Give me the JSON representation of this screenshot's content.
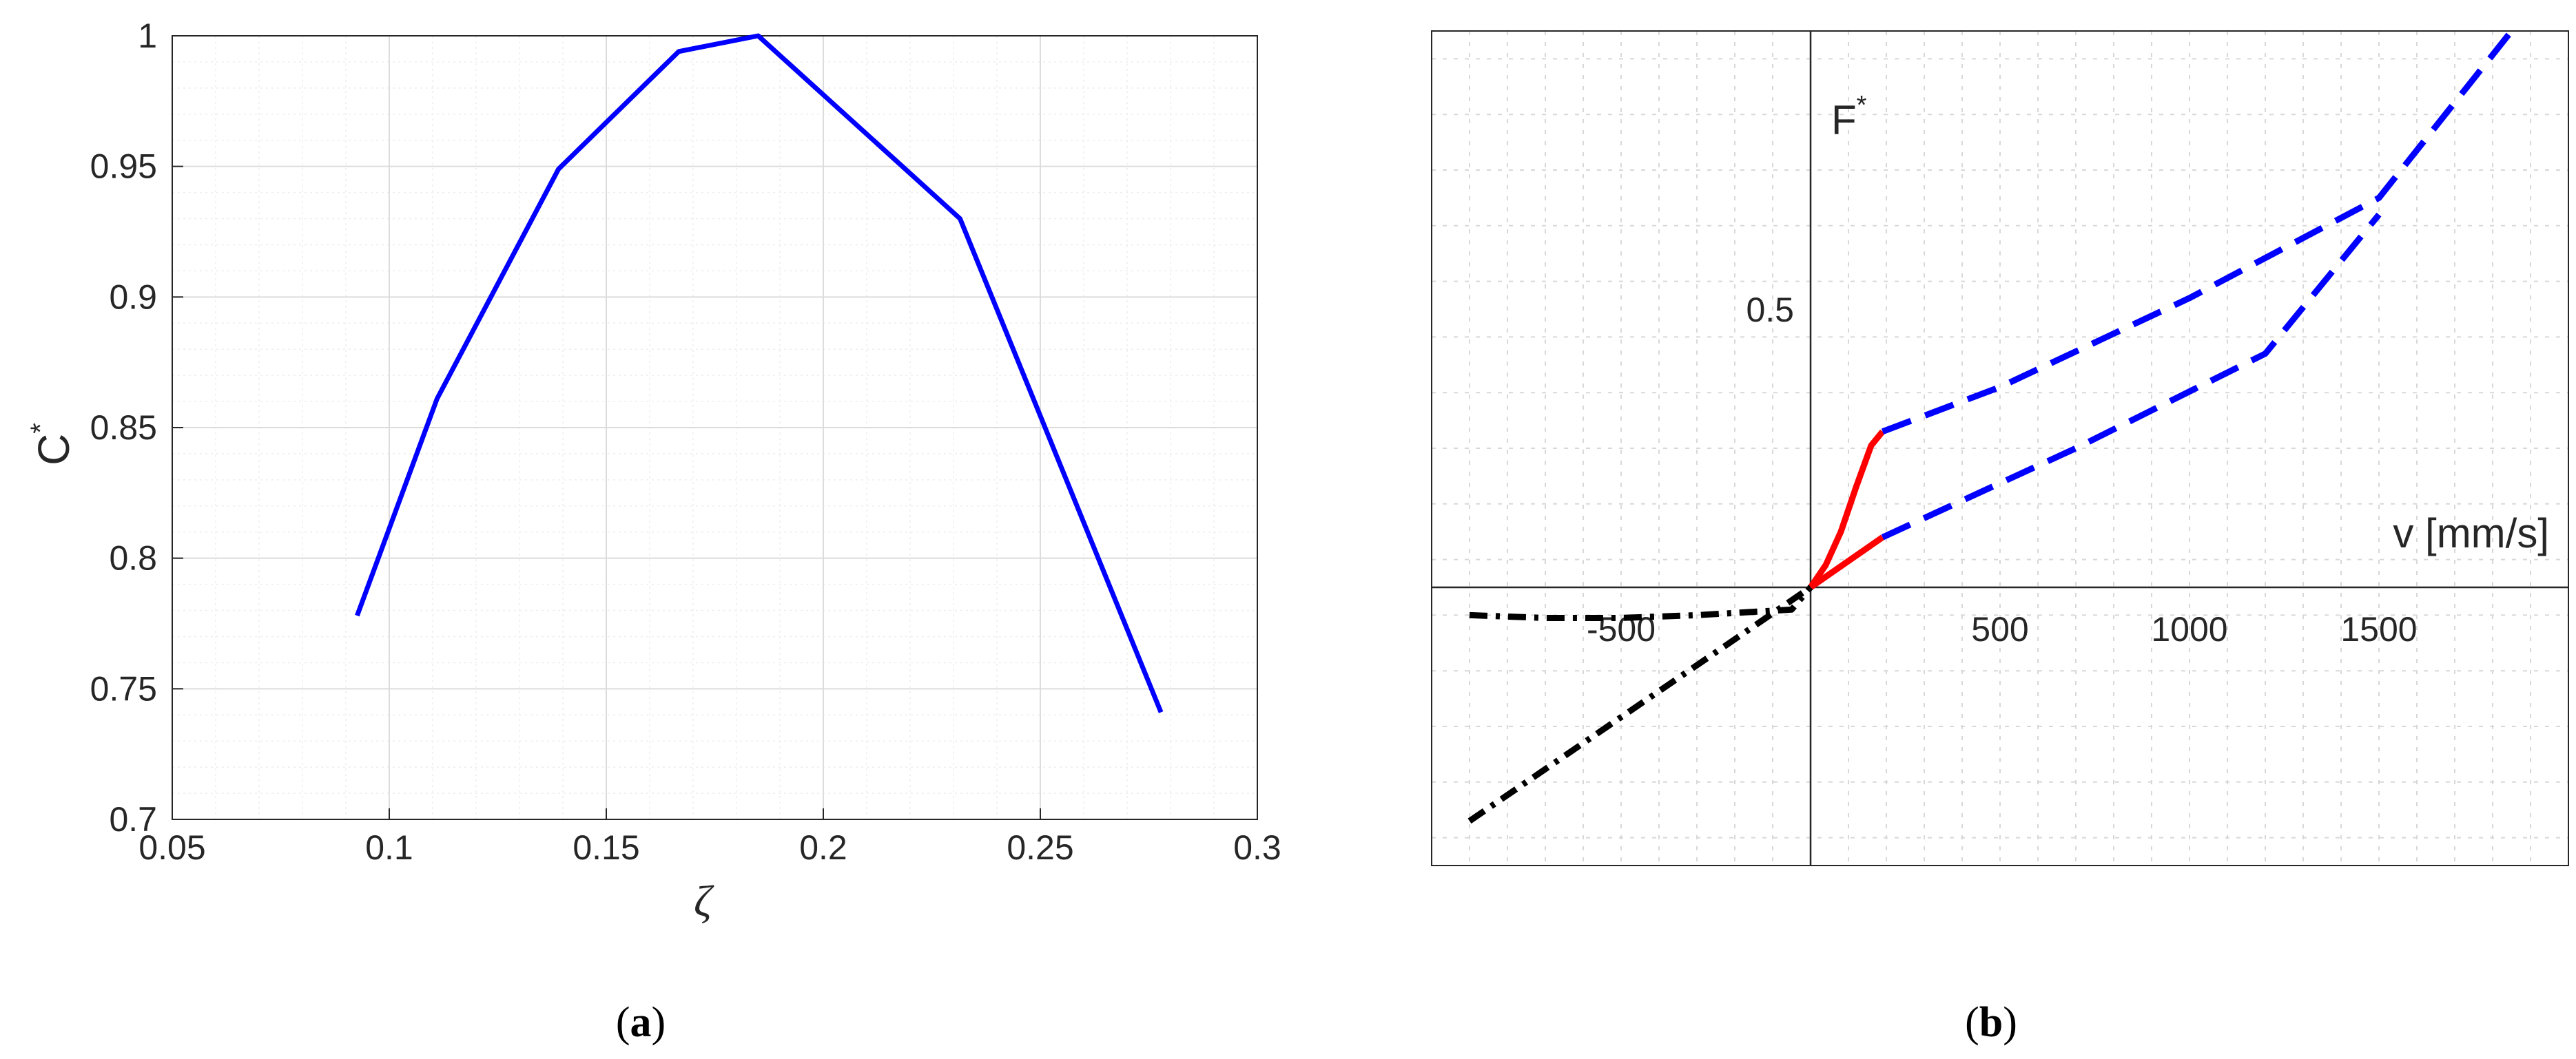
{
  "chart_data": [
    {
      "type": "line",
      "caption": {
        "open": "(",
        "letter": "a",
        "close": ")"
      },
      "xlabel": "ζ",
      "ylabel": "C",
      "ylabel_superscript": "*",
      "xlim": [
        0.05,
        0.3
      ],
      "ylim": [
        0.7,
        1.0
      ],
      "xticks": [
        0.05,
        0.1,
        0.15,
        0.2,
        0.25,
        0.3
      ],
      "xtick_labels": [
        "0.05",
        "0.1",
        "0.15",
        "0.2",
        "0.25",
        "0.3"
      ],
      "yticks": [
        0.7,
        0.75,
        0.8,
        0.85,
        0.9,
        0.95,
        1.0
      ],
      "ytick_labels": [
        "0.7",
        "0.75",
        "0.8",
        "0.85",
        "0.9",
        "0.95",
        "1"
      ],
      "grid": true,
      "minor_grid": true,
      "series": [
        {
          "color": "#0000ff",
          "style": "solid",
          "x": [
            0.0926,
            0.111,
            0.139,
            0.1667,
            0.185,
            0.2315,
            0.2778
          ],
          "y": [
            0.778,
            0.861,
            0.949,
            0.994,
            1.0,
            0.93,
            0.741
          ]
        }
      ]
    },
    {
      "type": "line",
      "caption": {
        "open": "(",
        "letter": "b",
        "close": ")"
      },
      "xlabel": "v [mm/s]",
      "ylabel": "F",
      "ylabel_superscript": "*",
      "xlim": [
        -1000,
        2000
      ],
      "ylim": [
        -0.5,
        1.0
      ],
      "xticks": [
        -500,
        500,
        1000,
        1500
      ],
      "xtick_labels": [
        "-500",
        "500",
        "1000",
        "1500"
      ],
      "yticks": [
        0.5
      ],
      "ytick_labels": [
        "0.5"
      ],
      "grid": true,
      "axes_through_origin": true,
      "series": [
        {
          "color": "#ff0000",
          "style": "solid",
          "x": [
            0,
            40,
            80,
            120,
            160,
            190
          ],
          "y": [
            0,
            0.04,
            0.1,
            0.18,
            0.255,
            0.28
          ]
        },
        {
          "color": "#ff0000",
          "style": "solid",
          "x": [
            0,
            190
          ],
          "y": [
            0,
            0.09
          ]
        },
        {
          "color": "#0000ff",
          "style": "dashed",
          "x": [
            190,
            500,
            1000,
            1500,
            1850
          ],
          "y": [
            0.28,
            0.36,
            0.52,
            0.7,
            1.0
          ]
        },
        {
          "color": "#0000ff",
          "style": "dashed",
          "x": [
            190,
            700,
            1200,
            1500
          ],
          "y": [
            0.09,
            0.25,
            0.42,
            0.67
          ]
        },
        {
          "color": "#000000",
          "style": "dashdot",
          "x": [
            -900,
            -700,
            -500,
            -300,
            -50,
            0
          ],
          "y": [
            -0.05,
            -0.055,
            -0.055,
            -0.05,
            -0.04,
            0
          ]
        },
        {
          "color": "#000000",
          "style": "dashdot",
          "x": [
            -900,
            -450,
            0
          ],
          "y": [
            -0.42,
            -0.21,
            0
          ]
        }
      ]
    }
  ]
}
